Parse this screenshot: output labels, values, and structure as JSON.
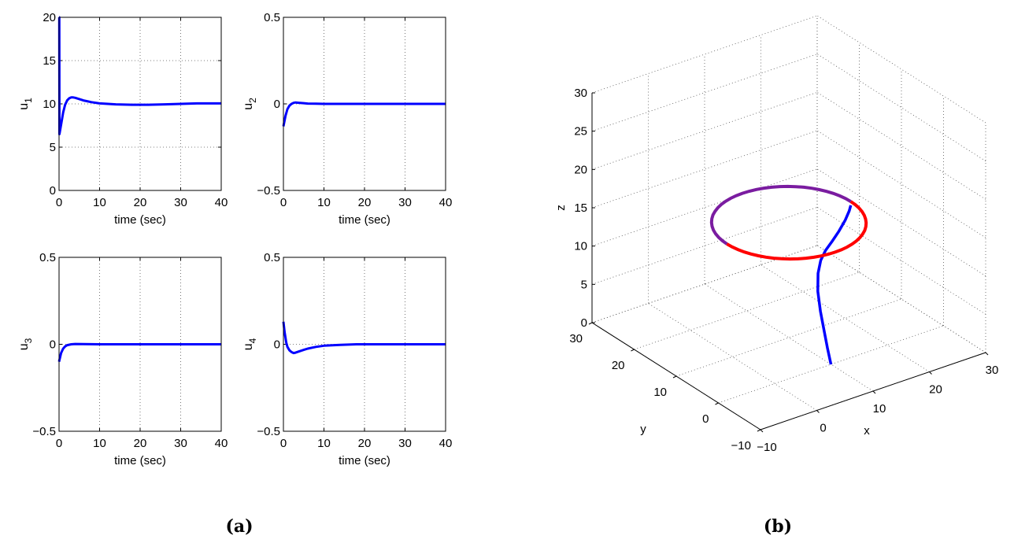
{
  "figure": {
    "captions": [
      "(a)",
      "(b)"
    ]
  },
  "chart_data": [
    {
      "type": "line",
      "panel": "a",
      "xlabel": "time (sec)",
      "ylabel": "u",
      "ylabel_sub": "1",
      "xlim": [
        0,
        40
      ],
      "ylim": [
        0,
        20
      ],
      "xticks": [
        0,
        10,
        20,
        30,
        40
      ],
      "xtick_labels": [
        "0",
        "10",
        "20",
        "30",
        "40"
      ],
      "yticks": [
        0,
        5,
        10,
        15,
        20
      ],
      "ytick_labels": [
        "0",
        "5",
        "10",
        "15",
        "20"
      ],
      "grid": true,
      "color": "#0000ff",
      "series": [
        {
          "x": [
            0,
            0.05,
            0.1,
            0.5,
            1,
            1.5,
            2,
            2.5,
            3,
            3.5,
            4,
            5,
            6,
            8,
            10,
            14,
            18,
            22,
            26,
            30,
            34,
            38,
            40
          ],
          "y": [
            20,
            20,
            6.5,
            7.6,
            9.0,
            9.9,
            10.4,
            10.65,
            10.75,
            10.75,
            10.7,
            10.55,
            10.4,
            10.2,
            10.05,
            9.95,
            9.9,
            9.9,
            9.95,
            10.0,
            10.05,
            10.05,
            10.05
          ]
        }
      ]
    },
    {
      "type": "line",
      "panel": "a",
      "xlabel": "time (sec)",
      "ylabel": "u",
      "ylabel_sub": "2",
      "xlim": [
        0,
        40
      ],
      "ylim": [
        -0.5,
        0.5
      ],
      "xticks": [
        0,
        10,
        20,
        30,
        40
      ],
      "xtick_labels": [
        "0",
        "10",
        "20",
        "30",
        "40"
      ],
      "yticks": [
        -0.5,
        0,
        0.5
      ],
      "ytick_labels": [
        "−0.5",
        "0",
        "0.5"
      ],
      "grid": true,
      "color": "#0000ff",
      "series": [
        {
          "x": [
            0,
            0.5,
            1,
            1.5,
            2,
            2.5,
            3,
            4,
            5,
            6,
            8,
            10,
            20,
            30,
            40
          ],
          "y": [
            -0.13,
            -0.07,
            -0.03,
            -0.01,
            0.0,
            0.006,
            0.008,
            0.006,
            0.004,
            0.002,
            0.001,
            0,
            0,
            0,
            0
          ]
        }
      ]
    },
    {
      "type": "line",
      "panel": "a",
      "xlabel": "time (sec)",
      "ylabel": "u",
      "ylabel_sub": "3",
      "xlim": [
        0,
        40
      ],
      "ylim": [
        -0.5,
        0.5
      ],
      "xticks": [
        0,
        10,
        20,
        30,
        40
      ],
      "xtick_labels": [
        "0",
        "10",
        "20",
        "30",
        "40"
      ],
      "yticks": [
        -0.5,
        0,
        0.5
      ],
      "ytick_labels": [
        "−0.5",
        "0",
        "0.5"
      ],
      "grid": true,
      "color": "#0000ff",
      "series": [
        {
          "x": [
            0,
            0.5,
            1,
            1.5,
            2,
            3,
            4,
            6,
            10,
            20,
            30,
            40
          ],
          "y": [
            -0.1,
            -0.05,
            -0.025,
            -0.012,
            -0.005,
            0,
            0.002,
            0.001,
            0,
            0,
            0,
            0
          ]
        }
      ]
    },
    {
      "type": "line",
      "panel": "a",
      "xlabel": "time (sec)",
      "ylabel": "u",
      "ylabel_sub": "4",
      "xlim": [
        0,
        40
      ],
      "ylim": [
        -0.5,
        0.5
      ],
      "xticks": [
        0,
        10,
        20,
        30,
        40
      ],
      "xtick_labels": [
        "0",
        "10",
        "20",
        "30",
        "40"
      ],
      "yticks": [
        -0.5,
        0,
        0.5
      ],
      "ytick_labels": [
        "−0.5",
        "0",
        "0.5"
      ],
      "grid": true,
      "color": "#0000ff",
      "series": [
        {
          "x": [
            0,
            0.3,
            0.7,
            1,
            1.5,
            2,
            2.5,
            3,
            3.5,
            4,
            5,
            6,
            8,
            10,
            14,
            18,
            22,
            30,
            40
          ],
          "y": [
            0.13,
            0.07,
            0.01,
            -0.015,
            -0.035,
            -0.045,
            -0.05,
            -0.048,
            -0.044,
            -0.04,
            -0.032,
            -0.025,
            -0.015,
            -0.008,
            -0.003,
            0,
            0,
            0,
            0
          ]
        }
      ]
    },
    {
      "type": "line3d",
      "panel": "b",
      "xlabel": "x",
      "ylabel": "y",
      "zlabel": "z",
      "xlim": [
        -10,
        30
      ],
      "ylim": [
        -10,
        30
      ],
      "zlim": [
        0,
        30
      ],
      "xticks": [
        -10,
        0,
        10,
        20,
        30
      ],
      "xtick_labels": [
        "−10",
        "0",
        "10",
        "20",
        "30"
      ],
      "yticks": [
        -10,
        0,
        10,
        20,
        30
      ],
      "ytick_labels": [
        "−10",
        "0",
        "10",
        "20",
        "30"
      ],
      "zticks": [
        0,
        5,
        10,
        15,
        20,
        25,
        30
      ],
      "ztick_labels": [
        "0",
        "5",
        "10",
        "15",
        "20",
        "25",
        "30"
      ],
      "grid": true,
      "trajectory": {
        "description_colors": {
          "start": "#0000ff",
          "mid": "#7a1ca0",
          "end": "#ff0000"
        },
        "approach": {
          "x": [
            10,
            10.5,
            11,
            11.5,
            12,
            12.8,
            13.8,
            15,
            16.5,
            18,
            19.5,
            20.5,
            21
          ],
          "y": [
            0,
            1.5,
            3,
            4.5,
            5.8,
            6.8,
            7.5,
            8.0,
            8.4,
            8.8,
            9.3,
            9.7,
            10
          ],
          "z": [
            0,
            1.5,
            3.2,
            5.0,
            7.0,
            8.8,
            10.0,
            10.8,
            11.5,
            12.3,
            13.2,
            14.0,
            14.5
          ]
        },
        "circle": {
          "center_x": 10,
          "center_y": 10,
          "radius": 11,
          "z": 15
        }
      }
    }
  ]
}
